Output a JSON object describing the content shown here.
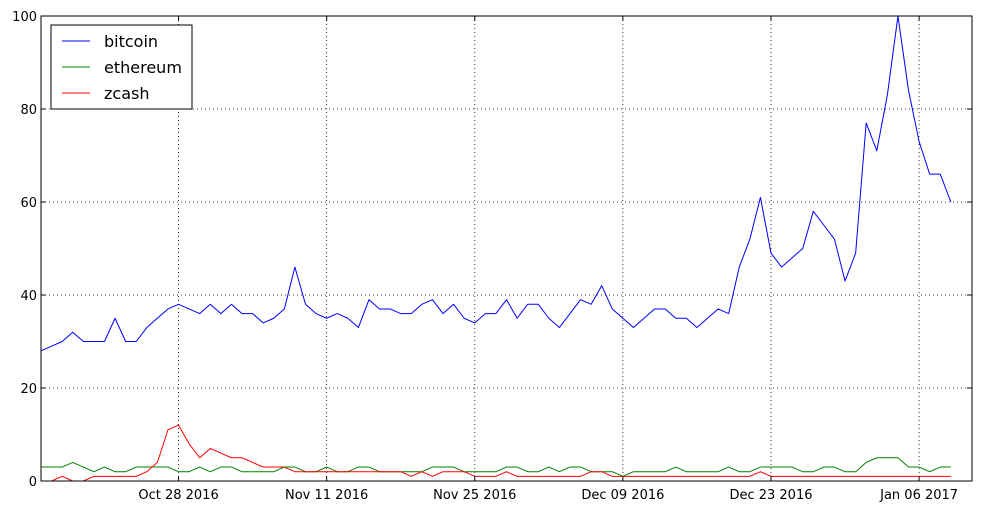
{
  "chart_data": {
    "type": "line",
    "title": "",
    "xlabel": "",
    "ylabel": "",
    "ylim": [
      0,
      100
    ],
    "y_ticks": [
      0,
      20,
      40,
      60,
      80,
      100
    ],
    "x_range": [
      "2016-10-15",
      "2017-01-11"
    ],
    "x_ticks": [
      {
        "date": "2016-10-28",
        "label": "Oct 28 2016"
      },
      {
        "date": "2016-11-11",
        "label": "Nov 11 2016"
      },
      {
        "date": "2016-11-25",
        "label": "Nov 25 2016"
      },
      {
        "date": "2016-12-09",
        "label": "Dec 09 2016"
      },
      {
        "date": "2016-12-23",
        "label": "Dec 23 2016"
      },
      {
        "date": "2017-01-06",
        "label": "Jan 06 2017"
      }
    ],
    "start_date": "2016-10-15",
    "grid": true,
    "legend_position": "top-left",
    "series": [
      {
        "name": "bitcoin",
        "color": "#0000ff",
        "values": [
          28,
          29,
          30,
          32,
          30,
          30,
          30,
          35,
          30,
          30,
          33,
          35,
          37,
          38,
          37,
          36,
          38,
          36,
          38,
          36,
          36,
          34,
          35,
          37,
          46,
          38,
          36,
          35,
          36,
          35,
          33,
          39,
          37,
          37,
          36,
          36,
          38,
          39,
          36,
          38,
          35,
          34,
          36,
          36,
          39,
          35,
          38,
          38,
          35,
          33,
          36,
          39,
          38,
          42,
          37,
          35,
          33,
          35,
          37,
          37,
          35,
          35,
          33,
          35,
          37,
          36,
          46,
          52,
          61,
          49,
          46,
          48,
          50,
          58,
          55,
          52,
          43,
          49,
          77,
          71,
          83,
          100,
          84,
          73,
          66,
          66,
          60
        ]
      },
      {
        "name": "ethereum",
        "color": "#008000",
        "values": [
          3,
          3,
          3,
          4,
          3,
          2,
          3,
          2,
          2,
          3,
          3,
          3,
          3,
          2,
          2,
          3,
          2,
          3,
          3,
          2,
          2,
          2,
          2,
          3,
          3,
          2,
          2,
          3,
          2,
          2,
          3,
          3,
          2,
          2,
          2,
          2,
          2,
          3,
          3,
          3,
          2,
          2,
          2,
          2,
          3,
          3,
          2,
          2,
          3,
          2,
          3,
          3,
          2,
          2,
          2,
          1,
          2,
          2,
          2,
          2,
          3,
          2,
          2,
          2,
          2,
          3,
          2,
          2,
          3,
          3,
          3,
          3,
          2,
          2,
          3,
          3,
          2,
          2,
          4,
          5,
          5,
          5,
          3,
          3,
          2,
          3,
          3
        ]
      },
      {
        "name": "zcash",
        "color": "#ff0000",
        "values": [
          0,
          0,
          1,
          0,
          0,
          1,
          1,
          1,
          1,
          1,
          2,
          4,
          11,
          12,
          8,
          5,
          7,
          6,
          5,
          5,
          4,
          3,
          3,
          3,
          2,
          2,
          2,
          2,
          2,
          2,
          2,
          2,
          2,
          2,
          2,
          1,
          2,
          1,
          2,
          2,
          2,
          1,
          1,
          1,
          2,
          1,
          1,
          1,
          1,
          1,
          1,
          1,
          2,
          2,
          1,
          1,
          1,
          1,
          1,
          1,
          1,
          1,
          1,
          1,
          1,
          1,
          1,
          1,
          2,
          1,
          1,
          1,
          1,
          1,
          1,
          1,
          1,
          1,
          1,
          1,
          1,
          1,
          1,
          1,
          1,
          1,
          1
        ]
      }
    ]
  }
}
